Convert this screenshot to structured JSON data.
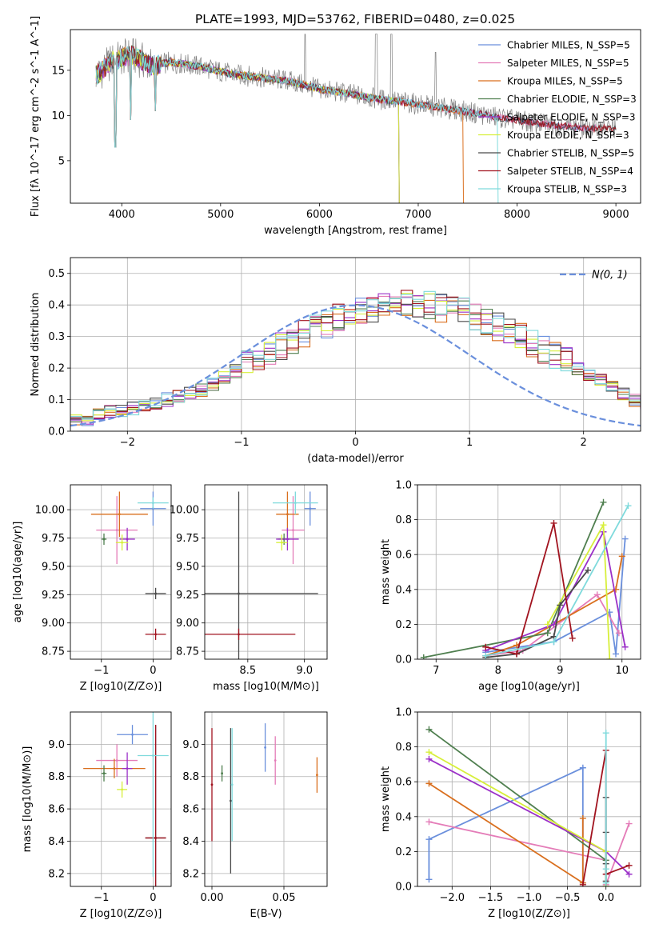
{
  "figure": {
    "title": "PLATE=1993, MJD=53762, FIBERID=0480, z=0.025"
  },
  "colors": {
    "chabrier_miles": "#6a8fdc",
    "salpeter_miles": "#e47cb8",
    "kroupa_miles": "#d96f1e",
    "chabrier_elodie": "#4f7f4f",
    "salpeter_elodie": "#9b30c8",
    "kroupa_elodie": "#d7ef3a",
    "chabrier_stelib": "#4a4a4a",
    "salpeter_stelib": "#a1131f",
    "kroupa_stelib": "#7fdadc",
    "data": "#808080"
  },
  "legend": {
    "spectrum": [
      "Chabrier MILES, N_SSP=5",
      "Salpeter MILES, N_SSP=5",
      "Kroupa MILES, N_SSP=5",
      "Chabrier ELODIE, N_SSP=3",
      "Salpeter ELODIE, N_SSP=3",
      "Kroupa ELODIE, N_SSP=3",
      "Chabrier STELIB, N_SSP=5",
      "Salpeter STELIB, N_SSP=4",
      "Kroupa STELIB, N_SSP=3"
    ],
    "normal": "N(0, 1)"
  },
  "chart_data": [
    {
      "type": "line",
      "title": "PLATE=1993, MJD=53762, FIBERID=0480, z=0.025",
      "xlabel": "wavelength [Angstrom, rest frame]",
      "ylabel": "Flux [fλ 10^-17 erg cm^-2 s^-1 A^-1]",
      "xlim": [
        3480,
        9250
      ],
      "ylim": [
        0.3,
        19.5
      ],
      "xticks": [
        4000,
        5000,
        6000,
        7000,
        8000,
        9000
      ],
      "yticks": [
        5,
        10,
        15
      ],
      "continuum_x": [
        3750,
        3900,
        4100,
        4300,
        4500,
        4800,
        5100,
        5400,
        5700,
        6000,
        6300,
        6600,
        6900,
        7200,
        7500,
        7800,
        8100,
        8400,
        8700,
        9000
      ],
      "continuum_y": [
        14.5,
        16.0,
        16.7,
        15.5,
        15.9,
        15.4,
        14.6,
        14.2,
        13.8,
        12.9,
        12.4,
        11.8,
        11.4,
        10.9,
        10.4,
        9.8,
        9.3,
        8.9,
        8.6,
        8.6
      ],
      "series": [
        {
          "name": "Chabrier MILES, N_SSP=5",
          "color_key": "chabrier_miles",
          "xmax": 8800
        },
        {
          "name": "Salpeter MILES, N_SSP=5",
          "color_key": "salpeter_miles",
          "xmax": 8800
        },
        {
          "name": "Kroupa MILES, N_SSP=5",
          "color_key": "kroupa_miles",
          "xmax": 7450
        },
        {
          "name": "Chabrier ELODIE, N_SSP=3",
          "color_key": "chabrier_elodie",
          "xmax": 6800
        },
        {
          "name": "Salpeter ELODIE, N_SSP=3",
          "color_key": "salpeter_elodie",
          "xmax": 6800
        },
        {
          "name": "Kroupa ELODIE, N_SSP=3",
          "color_key": "kroupa_elodie",
          "xmax": 6800
        },
        {
          "name": "Chabrier STELIB, N_SSP=5",
          "color_key": "chabrier_stelib",
          "xmax": 9000
        },
        {
          "name": "Salpeter STELIB, N_SSP=4",
          "color_key": "salpeter_stelib",
          "xmax": 9000
        },
        {
          "name": "Kroupa STELIB, N_SSP=3",
          "color_key": "kroupa_stelib",
          "xmax": 7800
        }
      ]
    },
    {
      "type": "line",
      "xlabel": "(data-model)/error",
      "ylabel": "Normed distribution",
      "xlim": [
        -2.5,
        2.5
      ],
      "ylim": [
        0,
        0.55
      ],
      "xticks": [
        -2,
        -1,
        0,
        1,
        2
      ],
      "yticks": [
        0.0,
        0.1,
        0.2,
        0.3,
        0.4,
        0.5
      ],
      "bin_width": 0.1,
      "normal_curve": {
        "mean": 0,
        "sigma": 1
      },
      "base_histogram": [
        0.03,
        0.04,
        0.05,
        0.06,
        0.06,
        0.07,
        0.08,
        0.09,
        0.1,
        0.11,
        0.12,
        0.13,
        0.15,
        0.17,
        0.19,
        0.21,
        0.23,
        0.25,
        0.27,
        0.29,
        0.31,
        0.33,
        0.34,
        0.36,
        0.37,
        0.38,
        0.39,
        0.4,
        0.4,
        0.41,
        0.4,
        0.4,
        0.39,
        0.39,
        0.38,
        0.36,
        0.35,
        0.33,
        0.32,
        0.3,
        0.28,
        0.26,
        0.24,
        0.22,
        0.2,
        0.18,
        0.16,
        0.14,
        0.12,
        0.1,
        0.09,
        0.08,
        0.07,
        0.06,
        0.05,
        0.04,
        0.04,
        0.03,
        0.03,
        0.03
      ]
    },
    {
      "type": "scatter",
      "xlabel": "Z [log10(Z/Z⊙)]",
      "ylabel": "age [log10(age/yr)]",
      "xlim": [
        -1.6,
        0.35
      ],
      "ylim": [
        8.68,
        10.22
      ],
      "xticks": [
        -1,
        0
      ],
      "yticks": [
        8.75,
        9.0,
        9.25,
        9.5,
        9.75,
        10.0
      ],
      "points": [
        {
          "color_key": "chabrier_miles",
          "x": 0.0,
          "y": 10.01,
          "xerr": 0.25,
          "yerr": 0.15
        },
        {
          "color_key": "salpeter_miles",
          "x": -0.7,
          "y": 9.82,
          "xerr": 0.4,
          "yerr": 0.3
        },
        {
          "color_key": "kroupa_miles",
          "x": -0.65,
          "y": 9.96,
          "xerr": 0.55,
          "yerr": 0.2
        },
        {
          "color_key": "chabrier_elodie",
          "x": -0.95,
          "y": 9.74,
          "xerr": 0.05,
          "yerr": 0.05
        },
        {
          "color_key": "salpeter_elodie",
          "x": -0.5,
          "y": 9.74,
          "xerr": 0.15,
          "yerr": 0.1
        },
        {
          "color_key": "kroupa_elodie",
          "x": -0.6,
          "y": 9.71,
          "xerr": 0.12,
          "yerr": 0.07
        },
        {
          "color_key": "chabrier_stelib",
          "x": 0.05,
          "y": 9.26,
          "xerr": 0.2,
          "yerr": 0.05
        },
        {
          "color_key": "salpeter_stelib",
          "x": 0.05,
          "y": 8.9,
          "xerr": 0.2,
          "yerr": 0.05
        },
        {
          "color_key": "kroupa_stelib",
          "x": 0.0,
          "y": 10.06,
          "xerr": 0.3,
          "yerr": 0.05
        }
      ]
    },
    {
      "type": "scatter",
      "xlabel": "mass [log10(M/M⊙)]",
      "ylabel": "",
      "xlim": [
        8.12,
        9.2
      ],
      "ylim": [
        8.68,
        10.22
      ],
      "xticks": [
        8.5,
        9.0
      ],
      "yticks": [
        8.75,
        9.0,
        9.25,
        9.5,
        9.75,
        10.0
      ],
      "points": [
        {
          "color_key": "chabrier_miles",
          "x": 9.05,
          "y": 10.01,
          "xerr": 0.05,
          "yerr": 0.15
        },
        {
          "color_key": "salpeter_miles",
          "x": 8.9,
          "y": 9.82,
          "xerr": 0.1,
          "yerr": 0.3
        },
        {
          "color_key": "kroupa_miles",
          "x": 8.85,
          "y": 9.96,
          "xerr": 0.1,
          "yerr": 0.2
        },
        {
          "color_key": "chabrier_elodie",
          "x": 8.82,
          "y": 9.74,
          "xerr": 0.05,
          "yerr": 0.05
        },
        {
          "color_key": "salpeter_elodie",
          "x": 8.85,
          "y": 9.74,
          "xerr": 0.1,
          "yerr": 0.1
        },
        {
          "color_key": "kroupa_elodie",
          "x": 8.8,
          "y": 9.71,
          "xerr": 0.05,
          "yerr": 0.07
        },
        {
          "color_key": "chabrier_stelib",
          "x": 8.42,
          "y": 9.26,
          "xerr": 0.7,
          "yerr": 0.9
        },
        {
          "color_key": "salpeter_stelib",
          "x": 8.42,
          "y": 8.9,
          "xerr": 0.5,
          "yerr": 0.05
        },
        {
          "color_key": "kroupa_stelib",
          "x": 8.92,
          "y": 10.06,
          "xerr": 0.2,
          "yerr": 0.1
        }
      ]
    },
    {
      "type": "line",
      "xlabel": "age [log10(age/yr)]",
      "ylabel": "mass weight",
      "xlim": [
        6.7,
        10.3
      ],
      "ylim": [
        0,
        1.0
      ],
      "xticks": [
        7,
        8,
        9,
        10
      ],
      "yticks": [
        0.0,
        0.2,
        0.4,
        0.6,
        0.8,
        1.0
      ],
      "series": [
        {
          "color_key": "chabrier_miles",
          "x": [
            7.8,
            8.9,
            9.8,
            9.9,
            10.05
          ],
          "y": [
            0.04,
            0.1,
            0.27,
            0.03,
            0.69
          ]
        },
        {
          "color_key": "salpeter_miles",
          "x": [
            7.8,
            8.4,
            9.6,
            9.95
          ],
          "y": [
            0.02,
            0.05,
            0.37,
            0.15
          ]
        },
        {
          "color_key": "kroupa_miles",
          "x": [
            7.8,
            8.3,
            9.9,
            10.0
          ],
          "y": [
            0.02,
            0.08,
            0.4,
            0.59
          ]
        },
        {
          "color_key": "chabrier_elodie",
          "x": [
            6.8,
            8.8,
            9.7
          ],
          "y": [
            0.01,
            0.15,
            0.9
          ]
        },
        {
          "color_key": "salpeter_elodie",
          "x": [
            7.8,
            8.9,
            9.7,
            10.05
          ],
          "y": [
            0.05,
            0.2,
            0.73,
            0.07
          ]
        },
        {
          "color_key": "kroupa_elodie",
          "x": [
            8.8,
            9.7,
            9.8
          ],
          "y": [
            0.2,
            0.77,
            0.0
          ]
        },
        {
          "color_key": "chabrier_stelib",
          "x": [
            7.8,
            8.3,
            8.9,
            9.0,
            9.45
          ],
          "y": [
            0.01,
            0.03,
            0.13,
            0.31,
            0.51
          ]
        },
        {
          "color_key": "salpeter_stelib",
          "x": [
            7.8,
            8.3,
            8.9,
            9.2
          ],
          "y": [
            0.07,
            0.03,
            0.78,
            0.12
          ]
        },
        {
          "color_key": "kroupa_stelib",
          "x": [
            7.8,
            8.9,
            10.1
          ],
          "y": [
            0.02,
            0.1,
            0.88
          ]
        }
      ]
    },
    {
      "type": "scatter",
      "xlabel": "Z [log10(Z/Z⊙)]",
      "ylabel": "mass [log10(M/M⊙)]",
      "xlim": [
        -1.6,
        0.35
      ],
      "ylim": [
        8.12,
        9.2
      ],
      "xticks": [
        -1,
        0
      ],
      "yticks": [
        8.2,
        8.4,
        8.6,
        8.8,
        9.0
      ],
      "points": [
        {
          "color_key": "chabrier_miles",
          "x": -0.4,
          "y": 9.06,
          "xerr": 0.3,
          "yerr": 0.06
        },
        {
          "color_key": "salpeter_miles",
          "x": -0.7,
          "y": 8.9,
          "xerr": 0.4,
          "yerr": 0.1
        },
        {
          "color_key": "kroupa_miles",
          "x": -0.75,
          "y": 8.85,
          "xerr": 0.6,
          "yerr": 0.06
        },
        {
          "color_key": "chabrier_elodie",
          "x": -0.95,
          "y": 8.82,
          "xerr": 0.05,
          "yerr": 0.05
        },
        {
          "color_key": "salpeter_elodie",
          "x": -0.5,
          "y": 8.85,
          "xerr": 0.1,
          "yerr": 0.1
        },
        {
          "color_key": "kroupa_elodie",
          "x": -0.6,
          "y": 8.72,
          "xerr": 0.1,
          "yerr": 0.05
        },
        {
          "color_key": "chabrier_stelib",
          "x": 0.05,
          "y": 8.42,
          "xerr": 0.2,
          "yerr": 0.7
        },
        {
          "color_key": "salpeter_stelib",
          "x": 0.05,
          "y": 8.42,
          "xerr": 0.2,
          "yerr": 0.7
        },
        {
          "color_key": "kroupa_stelib",
          "x": 0.0,
          "y": 8.93,
          "xerr": 0.3,
          "yerr": 0.75
        }
      ]
    },
    {
      "type": "scatter",
      "xlabel": "E(B-V)",
      "ylabel": "",
      "xlim": [
        -0.005,
        0.08
      ],
      "ylim": [
        8.12,
        9.2
      ],
      "xticks": [
        0.0,
        0.05
      ],
      "yticks": [
        8.2,
        8.4,
        8.6,
        8.8,
        9.0
      ],
      "points": [
        {
          "color_key": "salpeter_stelib",
          "x": 0.0,
          "y": 8.75,
          "xerr": 0,
          "yerr": 0.35
        },
        {
          "color_key": "chabrier_elodie",
          "x": 0.007,
          "y": 8.82,
          "xerr": 0,
          "yerr": 0.05
        },
        {
          "color_key": "chabrier_stelib",
          "x": 0.013,
          "y": 8.65,
          "xerr": 0,
          "yerr": 0.45
        },
        {
          "color_key": "kroupa_stelib",
          "x": 0.014,
          "y": 8.75,
          "xerr": 0,
          "yerr": 0.35
        },
        {
          "color_key": "chabrier_miles",
          "x": 0.037,
          "y": 8.98,
          "xerr": 0,
          "yerr": 0.15
        },
        {
          "color_key": "salpeter_miles",
          "x": 0.044,
          "y": 8.9,
          "xerr": 0,
          "yerr": 0.15
        },
        {
          "color_key": "kroupa_miles",
          "x": 0.073,
          "y": 8.81,
          "xerr": 0,
          "yerr": 0.11
        }
      ]
    },
    {
      "type": "line",
      "xlabel": "Z [log10(Z/Z⊙)]",
      "ylabel": "mass weight",
      "xlim": [
        -2.45,
        0.45
      ],
      "ylim": [
        0,
        1.0
      ],
      "xticks": [
        -2.0,
        -1.5,
        -1.0,
        -0.5,
        0.0
      ],
      "yticks": [
        0.0,
        0.2,
        0.4,
        0.6,
        0.8,
        1.0
      ],
      "series": [
        {
          "color_key": "chabrier_miles",
          "x": [
            -2.3,
            -2.3,
            -0.3,
            -0.3
          ],
          "y": [
            0.04,
            0.27,
            0.68,
            0.02
          ]
        },
        {
          "color_key": "salpeter_miles",
          "x": [
            -2.3,
            0.0,
            0.0,
            0.3
          ],
          "y": [
            0.37,
            0.15,
            0.01,
            0.36
          ]
        },
        {
          "color_key": "kroupa_miles",
          "x": [
            -2.3,
            -0.3,
            -0.3
          ],
          "y": [
            0.59,
            0.02,
            0.39
          ]
        },
        {
          "color_key": "chabrier_elodie",
          "x": [
            -2.3,
            0.0,
            0.0
          ],
          "y": [
            0.9,
            0.15,
            0.0
          ]
        },
        {
          "color_key": "salpeter_elodie",
          "x": [
            -2.3,
            0.0,
            0.3
          ],
          "y": [
            0.73,
            0.2,
            0.07
          ]
        },
        {
          "color_key": "kroupa_elodie",
          "x": [
            -2.3,
            0.0,
            0.0
          ],
          "y": [
            0.77,
            0.2,
            0.0
          ]
        },
        {
          "color_key": "chabrier_stelib",
          "x": [
            0.0,
            0.0,
            0.0,
            0.0
          ],
          "y": [
            0.03,
            0.13,
            0.31,
            0.51
          ]
        },
        {
          "color_key": "salpeter_stelib",
          "x": [
            -0.3,
            0.0,
            0.0,
            0.3
          ],
          "y": [
            0.01,
            0.78,
            0.07,
            0.12
          ]
        },
        {
          "color_key": "kroupa_stelib",
          "x": [
            0.0,
            0.0,
            0.0
          ],
          "y": [
            0.02,
            0.1,
            0.88
          ]
        }
      ]
    }
  ]
}
